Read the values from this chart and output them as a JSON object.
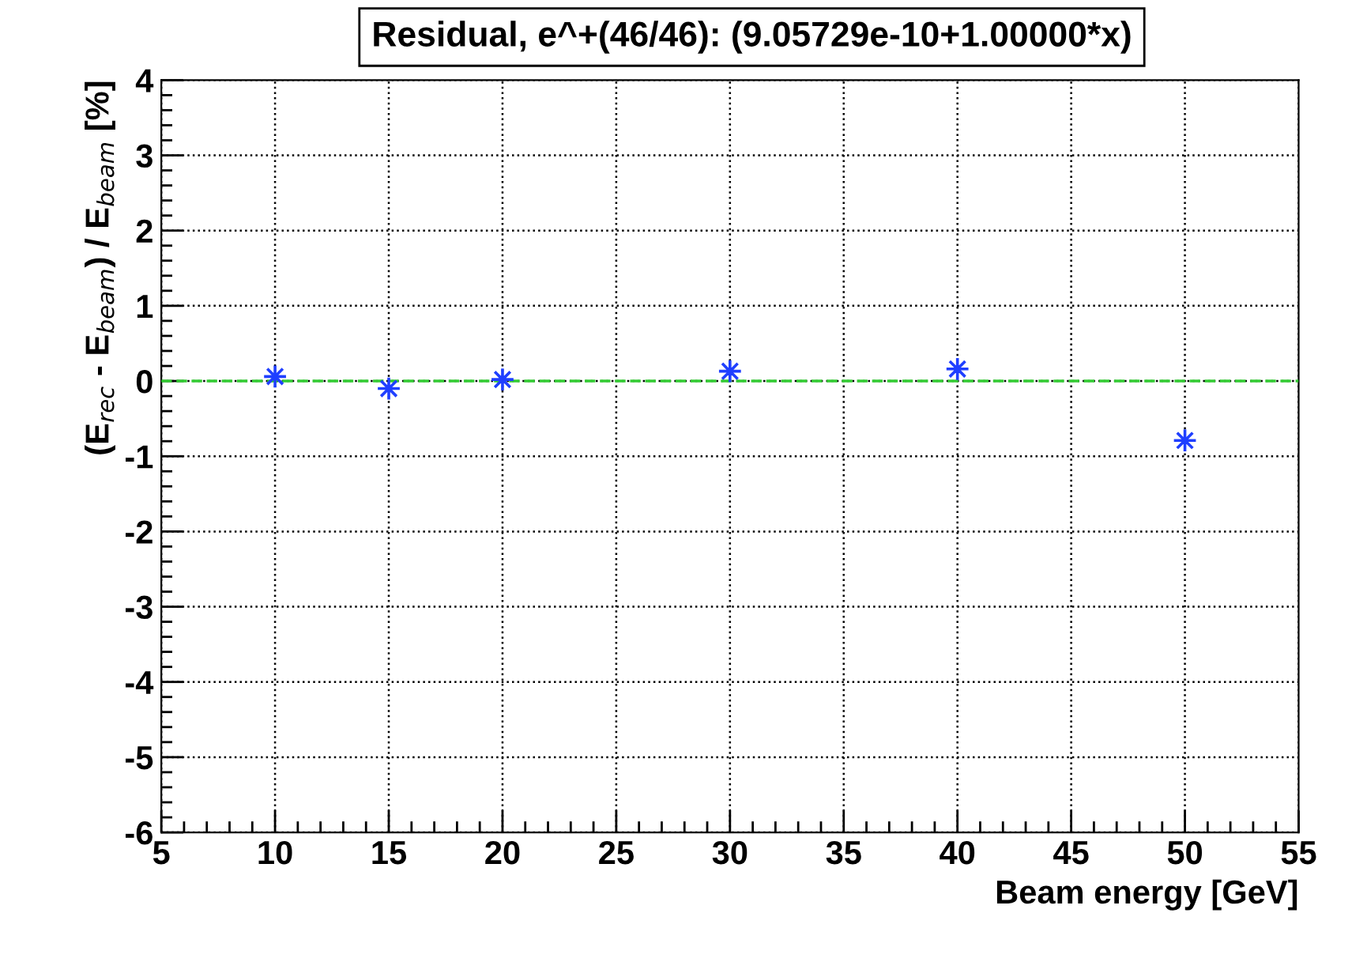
{
  "chart_data": {
    "type": "scatter",
    "title": "Residual, e^+(46/46): (9.05729e-10+1.00000*x)",
    "xlabel": "Beam energy [GeV]",
    "ylabel": "(E$_{rec}$ - E$_{beam}$) / E$_{beam}$ [%]",
    "x": [
      10,
      15,
      20,
      30,
      40,
      50
    ],
    "series": [
      {
        "color": "#1f3fff",
        "values": [
          0.06,
          -0.1,
          0.02,
          0.13,
          0.16,
          -0.79
        ]
      }
    ],
    "xlim": [
      5,
      55
    ],
    "ylim": [
      -6,
      4
    ],
    "xticks": [
      5,
      10,
      15,
      20,
      25,
      30,
      35,
      40,
      45,
      50,
      55
    ],
    "yticks": [
      -6,
      -5,
      -4,
      -3,
      -2,
      -1,
      0,
      1,
      2,
      3,
      4
    ],
    "ref_lines": [
      {
        "axis": "y",
        "value": 0,
        "color": "#33cc33",
        "line_style": "dashed"
      }
    ],
    "grid": true,
    "marker": "cross"
  }
}
